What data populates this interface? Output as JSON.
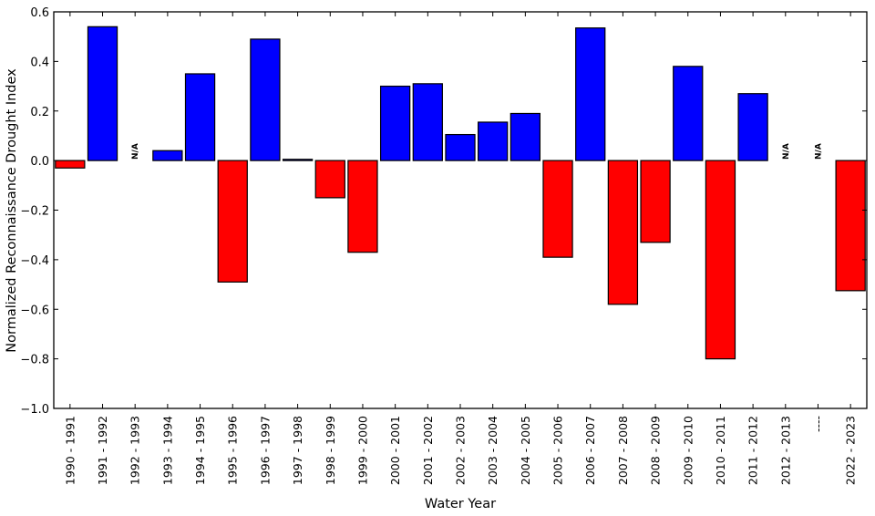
{
  "chart_data": {
    "type": "bar",
    "title": "",
    "xlabel": "Water Year",
    "ylabel": "Normalized Reconnaissance Drought Index",
    "ylim": [
      -1.0,
      0.6
    ],
    "yticks": [
      -1.0,
      -0.8,
      -0.6,
      -0.4,
      -0.2,
      0.0,
      0.2,
      0.4,
      0.6
    ],
    "ytick_labels": [
      "−1.0",
      "−0.8",
      "−0.6",
      "−0.4",
      "−0.2",
      "0.0",
      "0.2",
      "0.4",
      "0.6"
    ],
    "grid": false,
    "legend": null,
    "categories": [
      "1990 - 1991",
      "1991 - 1992",
      "1992 - 1993",
      "1993 - 1994",
      "1994 - 1995",
      "1995 - 1996",
      "1996 - 1997",
      "1997 - 1998",
      "1998 - 1999",
      "1999 - 2000",
      "2000 - 2001",
      "2001 - 2002",
      "2002 - 2003",
      "2003 - 2004",
      "2004 - 2005",
      "2005 - 2006",
      "2006 - 2007",
      "2007 - 2008",
      "2008 - 2009",
      "2009 - 2010",
      "2010 - 2011",
      "2011 - 2012",
      "2012 - 2013",
      "----",
      "2022 - 2023"
    ],
    "values": [
      -0.03,
      0.54,
      null,
      0.04,
      0.35,
      -0.49,
      0.49,
      0.005,
      -0.15,
      -0.37,
      0.3,
      0.31,
      0.105,
      0.155,
      0.19,
      -0.39,
      0.535,
      -0.58,
      -0.33,
      0.38,
      -0.8,
      0.27,
      null,
      null,
      -0.525
    ],
    "annotations": [
      {
        "category": "1992 - 1993",
        "text": "N/A"
      },
      {
        "category": "2012 - 2013",
        "text": "N/A"
      },
      {
        "category": "----",
        "text": "N/A"
      }
    ],
    "colors": {
      "positive": "#0000ff",
      "negative": "#ff0000",
      "edge": "#000000"
    }
  }
}
